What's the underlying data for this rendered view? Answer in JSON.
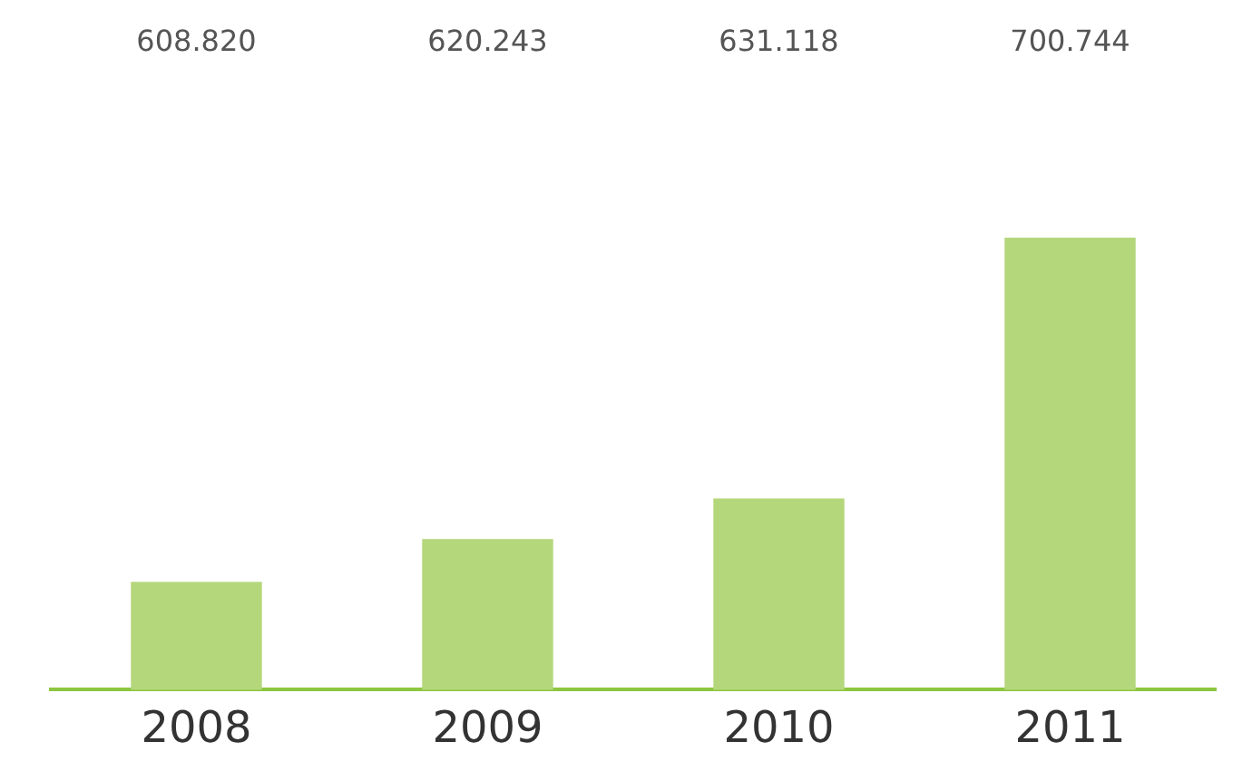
{
  "chart_data": {
    "type": "bar",
    "categories": [
      "2008",
      "2009",
      "2010",
      "2011"
    ],
    "values": [
      608.82,
      620.243,
      631.118,
      700.744
    ],
    "value_labels": [
      "608.820",
      "620.243",
      "631.118",
      "700.744"
    ],
    "color": "#b5d77c",
    "relative": false,
    "grid": false,
    "legend": false
  }
}
